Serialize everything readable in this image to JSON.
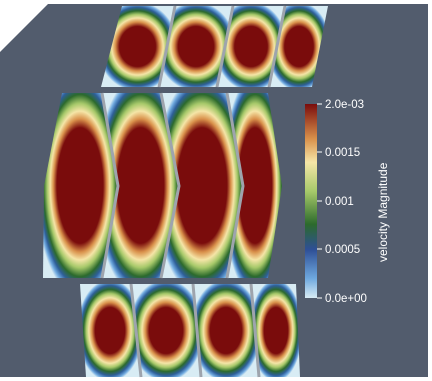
{
  "colorbar": {
    "title": "velocity Magnitude",
    "labels": [
      "2.0e-03",
      "0.0015",
      "0.001",
      "0.0005",
      "0.0e+00"
    ],
    "range": [
      0,
      0.002
    ],
    "colormap": [
      "#3a4cb4",
      "#6fa9df",
      "#d8ecf4",
      "#2c6a2c",
      "#a7c96a",
      "#f5e5a7",
      "#d9914b",
      "#7a0c0c"
    ]
  },
  "colors": {
    "background": "#525c6d",
    "cell_high": "#7a0c0c",
    "cell_low": "#d8ecf4",
    "separator": "#9ea4ad"
  }
}
